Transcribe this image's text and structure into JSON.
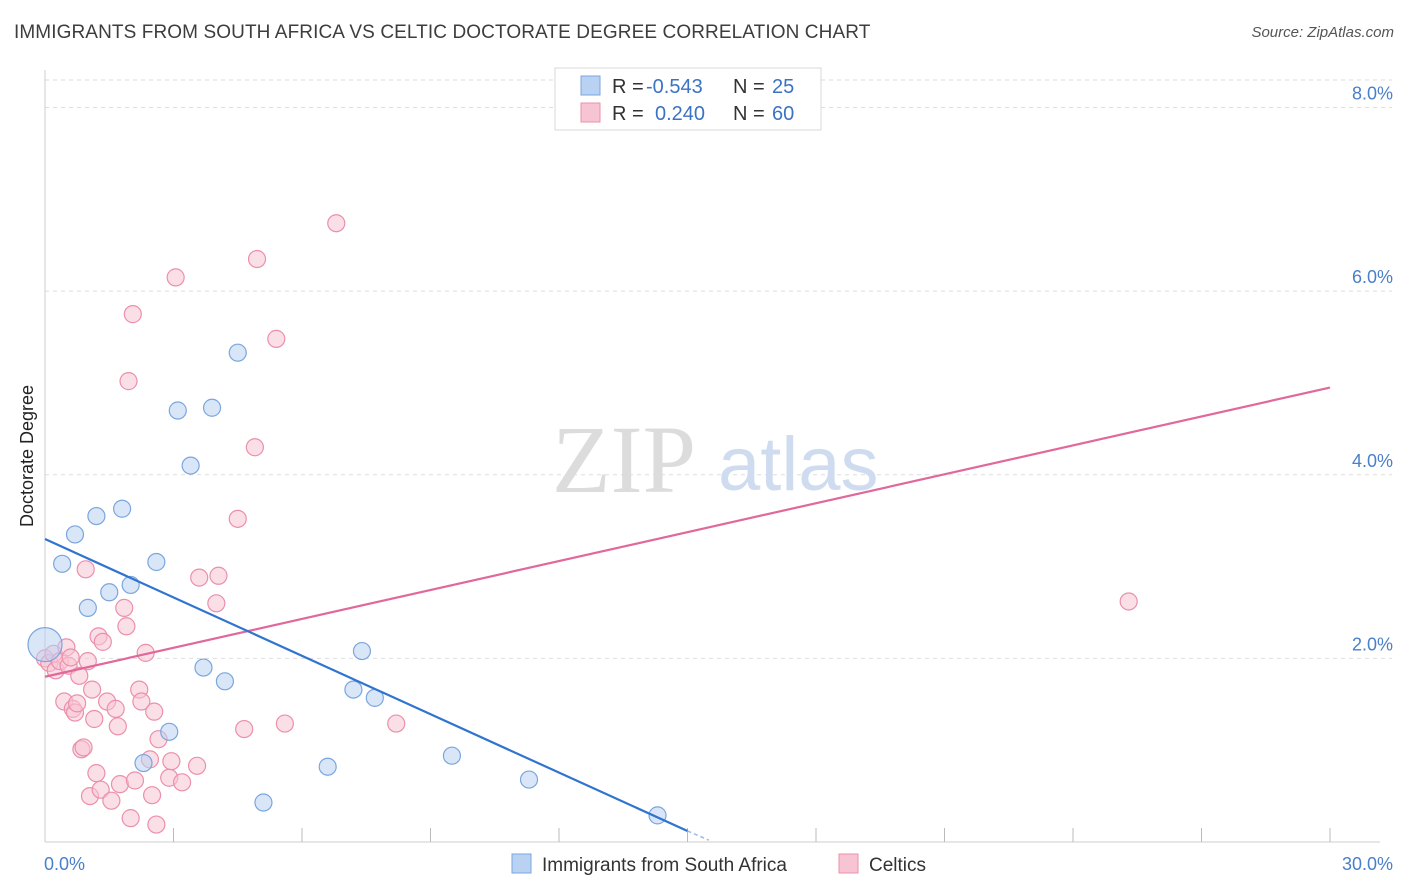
{
  "header": {
    "title": "IMMIGRANTS FROM SOUTH AFRICA VS CELTIC DOCTORATE DEGREE CORRELATION CHART",
    "source": "Source: ZipAtlas.com"
  },
  "watermark": {
    "zip": "ZIP",
    "atlas": "atlas"
  },
  "legend_top": {
    "rows": [
      {
        "r_label": "R =",
        "r_value": "-0.543",
        "n_label": "N =",
        "n_value": "25"
      },
      {
        "r_label": "R =",
        "r_value": "0.240",
        "n_label": "N =",
        "n_value": "60"
      }
    ]
  },
  "legend_bottom": {
    "series_a": "Immigrants from South Africa",
    "series_b": "Celtics"
  },
  "chart_data": {
    "type": "scatter",
    "title": "IMMIGRANTS FROM SOUTH AFRICA VS CELTIC DOCTORATE DEGREE CORRELATION CHART",
    "xlabel": "",
    "ylabel": "Doctorate Degree",
    "xlim": [
      0,
      30
    ],
    "ylim": [
      0,
      8.3
    ],
    "x_tick_labels": {
      "left": "0.0%",
      "right": "30.0%"
    },
    "y_ticks": [
      2,
      4,
      6,
      8
    ],
    "y_tick_labels": [
      "2.0%",
      "4.0%",
      "6.0%",
      "8.0%"
    ],
    "grid": true,
    "legend_placement": "top-center",
    "colors": {
      "series_a_fill": "#b9d2f3",
      "series_a_stroke": "#7aa6de",
      "series_a_line": "#2f74d0",
      "series_b_fill": "#f7c4d4",
      "series_b_stroke": "#ec8fab",
      "series_b_line": "#e0689a",
      "grid": "#dddddd",
      "tick_label": "#4a7fc9"
    },
    "series": [
      {
        "name": "Immigrants from South Africa",
        "r": -0.543,
        "n": 25,
        "trend": {
          "x": [
            0,
            15
          ],
          "y": [
            3.3,
            0.12
          ],
          "dashed_to": [
            15.5,
            0.02
          ]
        },
        "points": [
          {
            "x": 0.0,
            "y": 2.15,
            "big": true
          },
          {
            "x": 0.4,
            "y": 3.03
          },
          {
            "x": 0.7,
            "y": 3.35
          },
          {
            "x": 1.0,
            "y": 2.55
          },
          {
            "x": 1.2,
            "y": 3.55
          },
          {
            "x": 1.5,
            "y": 2.72
          },
          {
            "x": 1.8,
            "y": 3.63
          },
          {
            "x": 2.0,
            "y": 2.8
          },
          {
            "x": 2.3,
            "y": 0.86
          },
          {
            "x": 2.6,
            "y": 3.05
          },
          {
            "x": 2.9,
            "y": 1.2
          },
          {
            "x": 3.1,
            "y": 4.7
          },
          {
            "x": 3.4,
            "y": 4.1
          },
          {
            "x": 3.7,
            "y": 1.9
          },
          {
            "x": 3.9,
            "y": 4.73
          },
          {
            "x": 4.2,
            "y": 1.75
          },
          {
            "x": 4.5,
            "y": 5.33
          },
          {
            "x": 5.1,
            "y": 0.43
          },
          {
            "x": 6.6,
            "y": 0.82
          },
          {
            "x": 7.2,
            "y": 1.66
          },
          {
            "x": 7.4,
            "y": 2.08
          },
          {
            "x": 7.7,
            "y": 1.57
          },
          {
            "x": 9.5,
            "y": 0.94
          },
          {
            "x": 11.3,
            "y": 0.68
          },
          {
            "x": 14.3,
            "y": 0.29
          }
        ]
      },
      {
        "name": "Celtics",
        "r": 0.24,
        "n": 60,
        "trend": {
          "x": [
            0,
            30
          ],
          "y": [
            1.8,
            4.95
          ]
        },
        "points": [
          {
            "x": 0.0,
            "y": 2.0
          },
          {
            "x": 0.1,
            "y": 1.95
          },
          {
            "x": 0.2,
            "y": 2.05
          },
          {
            "x": 0.25,
            "y": 1.87
          },
          {
            "x": 0.35,
            "y": 1.97
          },
          {
            "x": 0.45,
            "y": 1.53
          },
          {
            "x": 0.5,
            "y": 2.12
          },
          {
            "x": 0.55,
            "y": 1.92
          },
          {
            "x": 0.6,
            "y": 2.01
          },
          {
            "x": 0.65,
            "y": 1.45
          },
          {
            "x": 0.7,
            "y": 1.41
          },
          {
            "x": 0.75,
            "y": 1.51
          },
          {
            "x": 0.8,
            "y": 1.81
          },
          {
            "x": 0.85,
            "y": 1.01
          },
          {
            "x": 0.9,
            "y": 1.03
          },
          {
            "x": 0.95,
            "y": 2.97
          },
          {
            "x": 1.0,
            "y": 1.97
          },
          {
            "x": 1.05,
            "y": 0.5
          },
          {
            "x": 1.1,
            "y": 1.66
          },
          {
            "x": 1.15,
            "y": 1.34
          },
          {
            "x": 1.2,
            "y": 0.75
          },
          {
            "x": 1.25,
            "y": 2.24
          },
          {
            "x": 1.3,
            "y": 0.57
          },
          {
            "x": 1.35,
            "y": 2.18
          },
          {
            "x": 1.45,
            "y": 1.53
          },
          {
            "x": 1.55,
            "y": 0.45
          },
          {
            "x": 1.65,
            "y": 1.45
          },
          {
            "x": 1.7,
            "y": 1.26
          },
          {
            "x": 1.75,
            "y": 0.63
          },
          {
            "x": 1.85,
            "y": 2.55
          },
          {
            "x": 1.9,
            "y": 2.35
          },
          {
            "x": 1.95,
            "y": 5.02
          },
          {
            "x": 2.0,
            "y": 0.26
          },
          {
            "x": 2.05,
            "y": 5.75
          },
          {
            "x": 2.1,
            "y": 0.67
          },
          {
            "x": 2.2,
            "y": 1.66
          },
          {
            "x": 2.25,
            "y": 1.53
          },
          {
            "x": 2.35,
            "y": 2.06
          },
          {
            "x": 2.45,
            "y": 0.9
          },
          {
            "x": 2.5,
            "y": 0.51
          },
          {
            "x": 2.55,
            "y": 1.42
          },
          {
            "x": 2.6,
            "y": 0.19
          },
          {
            "x": 2.65,
            "y": 1.12
          },
          {
            "x": 2.9,
            "y": 0.7
          },
          {
            "x": 2.95,
            "y": 0.88
          },
          {
            "x": 3.05,
            "y": 6.15
          },
          {
            "x": 3.2,
            "y": 0.65
          },
          {
            "x": 3.6,
            "y": 2.88
          },
          {
            "x": 4.0,
            "y": 2.6
          },
          {
            "x": 4.05,
            "y": 2.9
          },
          {
            "x": 4.5,
            "y": 3.52
          },
          {
            "x": 4.65,
            "y": 1.23
          },
          {
            "x": 4.9,
            "y": 4.3
          },
          {
            "x": 4.95,
            "y": 6.35
          },
          {
            "x": 5.4,
            "y": 5.48
          },
          {
            "x": 5.6,
            "y": 1.29
          },
          {
            "x": 6.8,
            "y": 6.74
          },
          {
            "x": 8.2,
            "y": 1.29
          },
          {
            "x": 25.3,
            "y": 2.62
          },
          {
            "x": 3.55,
            "y": 0.83
          }
        ]
      }
    ]
  }
}
